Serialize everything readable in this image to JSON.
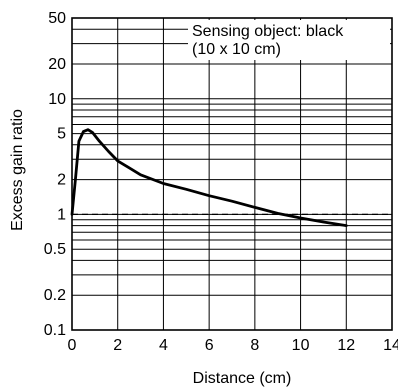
{
  "chart_data": {
    "type": "line",
    "title": "",
    "xlabel": "Distance (cm)",
    "ylabel": "Excess gain ratio",
    "x_scale": "linear",
    "y_scale": "log",
    "xlim": [
      0,
      14
    ],
    "ylim": [
      0.1,
      50
    ],
    "x_ticks": [
      0,
      2,
      4,
      6,
      8,
      10,
      12,
      14
    ],
    "x_tick_labels": [
      "0",
      "2",
      "4",
      "6",
      "8",
      "10",
      "12",
      "14"
    ],
    "y_ticks": [
      0.1,
      0.2,
      0.5,
      1,
      2,
      5,
      10,
      20,
      50
    ],
    "y_tick_labels": [
      "0.1",
      "0.2",
      "0.5",
      "1",
      "2",
      "5",
      "10",
      "20",
      "50"
    ],
    "grid": true,
    "annotation": {
      "line1": "Sensing object: black",
      "line2": "(10 x 10 cm)",
      "placement": "top-right"
    },
    "reference_line": {
      "y": 1,
      "style": "dashed"
    },
    "series": [
      {
        "x": [
          0.0,
          0.15,
          0.3,
          0.5,
          0.7,
          0.9,
          1.2,
          1.6,
          2.0,
          3.0,
          4.0,
          5.0,
          6.0,
          7.0,
          8.0,
          9.0,
          10.0,
          11.0,
          12.0
        ],
        "y": [
          1.0,
          2.0,
          4.3,
          5.2,
          5.4,
          5.1,
          4.3,
          3.5,
          2.9,
          2.2,
          1.85,
          1.65,
          1.45,
          1.3,
          1.15,
          1.02,
          0.93,
          0.86,
          0.8
        ]
      }
    ]
  }
}
